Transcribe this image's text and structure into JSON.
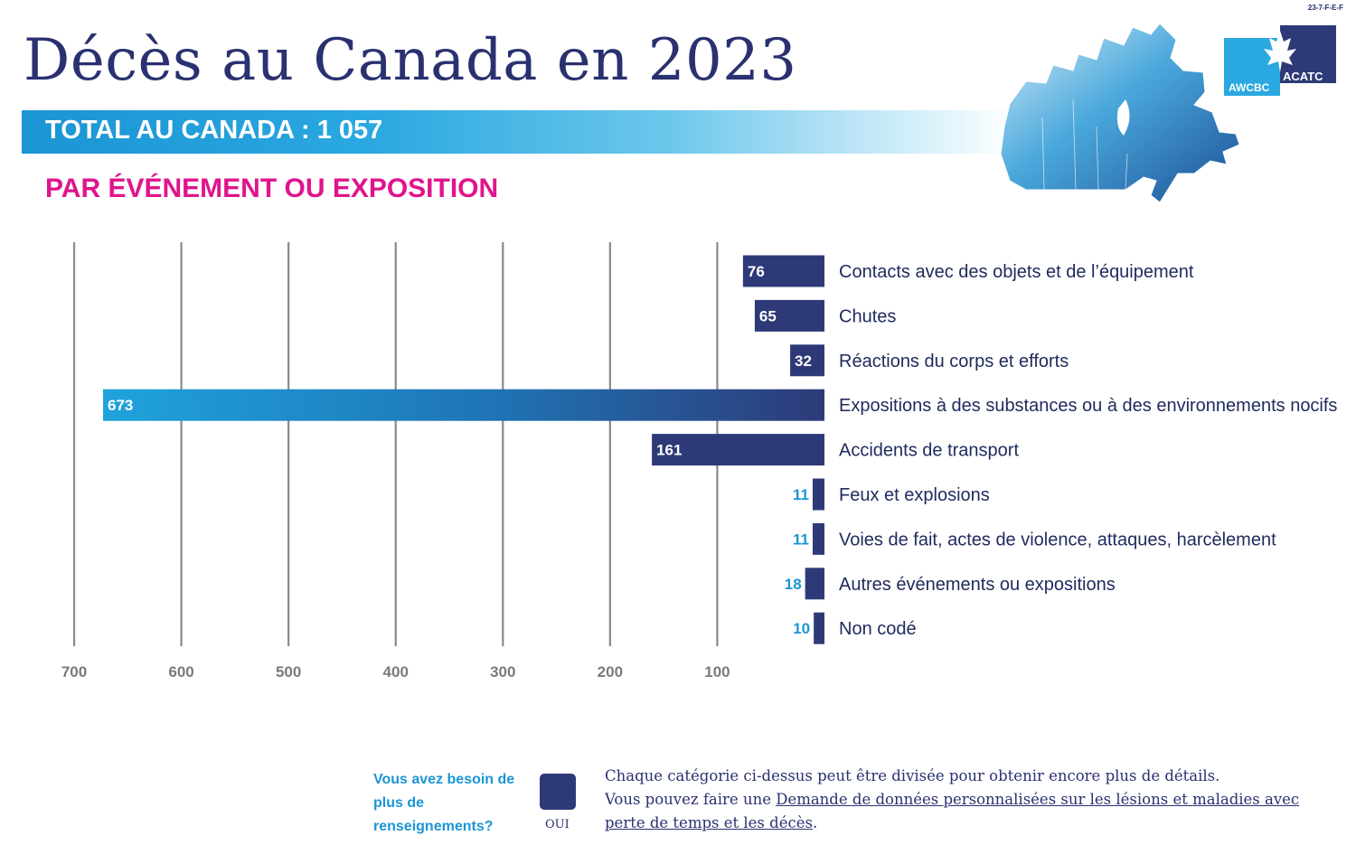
{
  "code": "23-7-F-E-F",
  "title": "Décès au Canada en 2023",
  "total_label": "TOTAL AU CANADA : 1 057",
  "subtitle": "PAR ÉVÉNEMENT OU EXPOSITION",
  "logo": {
    "left": "AWCBC",
    "right": "ACATC"
  },
  "colors": {
    "navy": "#2e3a78",
    "blue": "#1b95d4",
    "magenta": "#e0148c",
    "grid": "#8a8a8a"
  },
  "chart_data": {
    "type": "bar",
    "orientation": "horizontal-reversed",
    "xlim": [
      0,
      700
    ],
    "ticks": [
      700,
      600,
      500,
      400,
      300,
      200,
      100
    ],
    "categories": [
      "Contacts avec des objets et de l’équipement",
      "Chutes",
      "Réactions du corps et efforts",
      "Expositions à des substances ou à des environnements nocifs",
      "Accidents de transport",
      "Feux et explosions",
      "Voies de fait, actes de violence, attaques, harcèlement",
      "Autres événements ou expositions",
      "Non codé"
    ],
    "values": [
      76,
      65,
      32,
      673,
      161,
      11,
      11,
      18,
      10
    ],
    "highlight_index": 3
  },
  "footer": {
    "question": "Vous avez besoin de plus de renseignements?",
    "button_label": "OUI",
    "text_1": "Chaque catégorie ci-dessus peut être divisée pour obtenir encore plus de détails.",
    "text_2": "Vous pouvez faire une ",
    "link": "Demande de données personnalisées sur les lésions et maladies avec perte de temps et les décès",
    "text_3": "."
  }
}
